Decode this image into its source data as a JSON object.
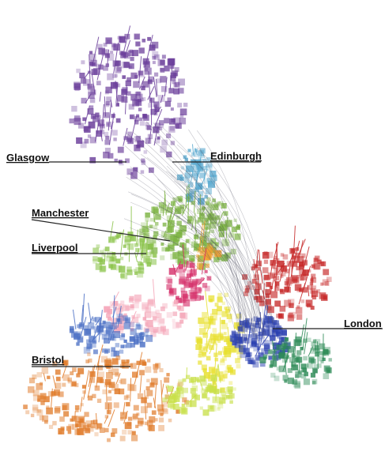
{
  "labels": {
    "glasgow": "Glasgow",
    "edinburgh": "Edinburgh",
    "manchester": "Manchester",
    "liverpool": "Liverpool",
    "london": "London",
    "bristol": "Bristol"
  }
}
